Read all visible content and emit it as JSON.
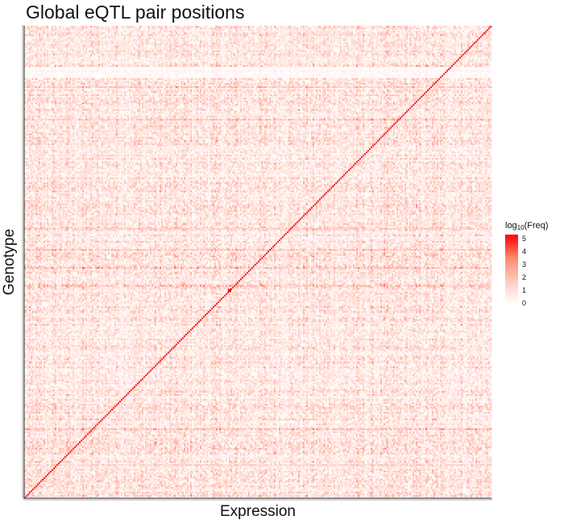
{
  "chart_data": {
    "type": "heatmap",
    "title": "Global eQTL pair positions",
    "xlabel": "Expression",
    "ylabel": "Genotype",
    "legend": {
      "title_main": "log",
      "title_sub": "10",
      "title_rest": "(Freq)",
      "ticks": [
        "5",
        "4",
        "3",
        "2",
        "1",
        "0"
      ],
      "range": [
        0,
        5
      ],
      "low_color": "#ffffff",
      "high_color": "#ff0000",
      "placement": "right"
    },
    "grid_size": 290,
    "diagonal_value": 4.6,
    "background_value_range": [
      0,
      2.5
    ],
    "hot_spot": {
      "row": 127,
      "col": 127,
      "value": 5
    },
    "dense_rows": [
      20,
      42,
      130,
      141,
      152,
      165,
      232,
      252,
      262
    ],
    "sparse_rows": [
      258,
      259,
      260,
      261,
      262,
      263,
      264
    ],
    "grid": false
  }
}
